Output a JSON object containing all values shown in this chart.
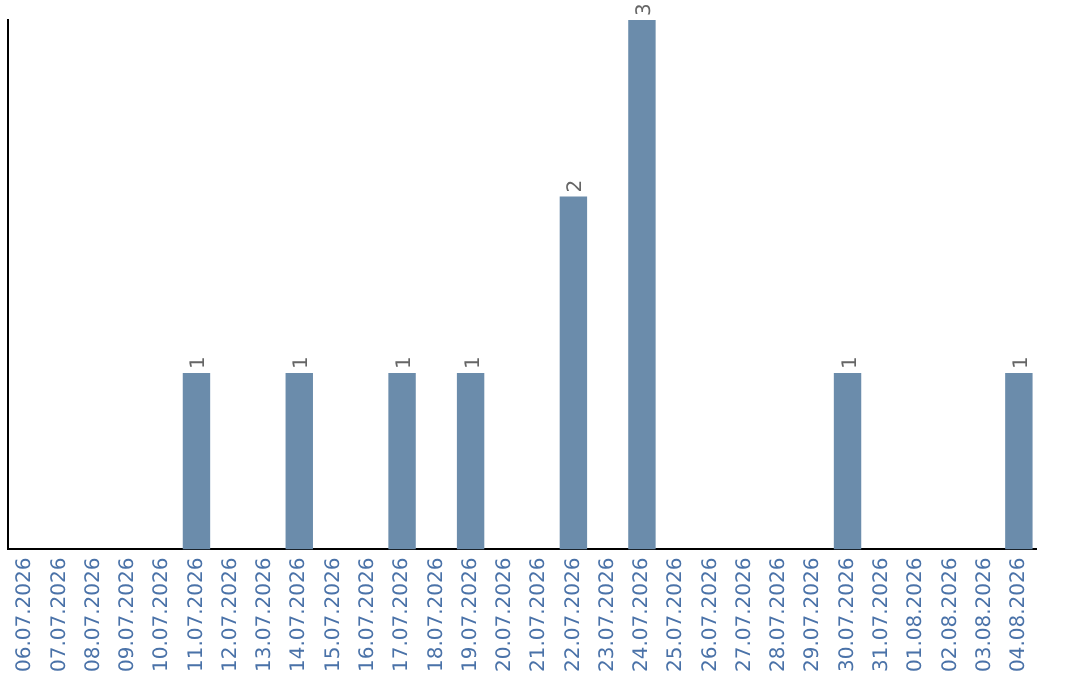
{
  "chart_data": {
    "type": "bar",
    "categories": [
      "06.07.2026",
      "07.07.2026",
      "08.07.2026",
      "09.07.2026",
      "10.07.2026",
      "11.07.2026",
      "12.07.2026",
      "13.07.2026",
      "14.07.2026",
      "15.07.2026",
      "16.07.2026",
      "17.07.2026",
      "18.07.2026",
      "19.07.2026",
      "20.07.2026",
      "21.07.2026",
      "22.07.2026",
      "23.07.2026",
      "24.07.2026",
      "25.07.2026",
      "26.07.2026",
      "27.07.2026",
      "28.07.2026",
      "29.07.2026",
      "30.07.2026",
      "31.07.2026",
      "01.08.2026",
      "02.08.2026",
      "03.08.2026",
      "04.08.2026"
    ],
    "values": [
      0,
      0,
      0,
      0,
      0,
      1,
      0,
      0,
      1,
      0,
      0,
      1,
      0,
      1,
      0,
      0,
      2,
      0,
      3,
      0,
      0,
      0,
      0,
      0,
      1,
      0,
      0,
      0,
      0,
      1
    ],
    "value_labels": [
      null,
      null,
      null,
      null,
      null,
      "1",
      null,
      null,
      "1",
      null,
      null,
      "1",
      null,
      "1",
      null,
      null,
      "2",
      null,
      "3",
      null,
      null,
      null,
      null,
      null,
      "1",
      null,
      null,
      null,
      null,
      "1"
    ],
    "color": "#6b8cab",
    "ylim": [
      0,
      3
    ],
    "tick_labels": "x",
    "grid": false,
    "legend": false
  }
}
